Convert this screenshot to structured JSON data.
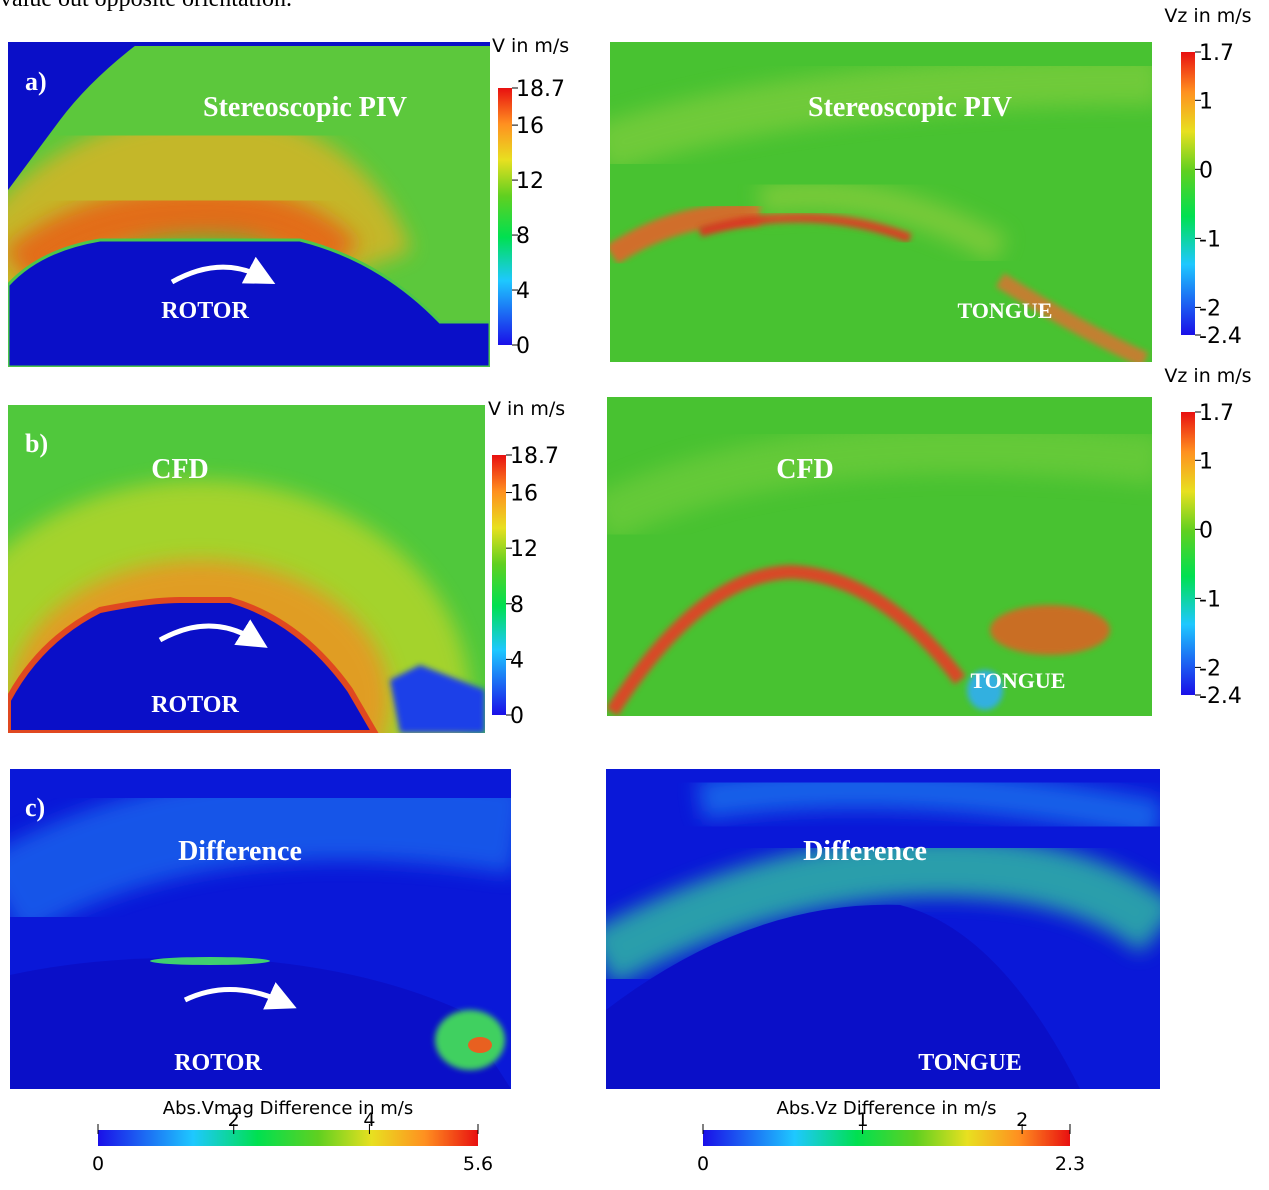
{
  "header_text": "value out opposite orientation.",
  "panels": [
    {
      "label": "a)",
      "title": "Stereoscopic PIV",
      "region": "ROTOR"
    },
    {
      "title": "Stereoscopic PIV",
      "region": "TONGUE"
    },
    {
      "label": "b)",
      "title": "CFD",
      "region": "ROTOR"
    },
    {
      "title": "CFD",
      "region": "TONGUE"
    },
    {
      "label": "c)",
      "title": "Difference",
      "region": "ROTOR"
    },
    {
      "title": "Difference",
      "region": "TONGUE"
    }
  ],
  "colorbars": [
    {
      "title": "V in m/s",
      "range": [
        0,
        18.7
      ],
      "ticks": [
        0,
        4,
        8,
        12,
        16,
        18.7
      ]
    },
    {
      "title": "Vz in m/s",
      "range": [
        -2.4,
        1.7
      ],
      "ticks": [
        -2.4,
        -2,
        -1,
        0,
        1,
        1.7
      ]
    },
    {
      "title": "V in m/s",
      "range": [
        0,
        18.7
      ],
      "ticks": [
        0,
        4,
        8,
        12,
        16,
        18.7
      ]
    },
    {
      "title": "Vz in m/s",
      "range": [
        -2.4,
        1.7
      ],
      "ticks": [
        -2.4,
        -2,
        -1,
        0,
        1,
        1.7
      ]
    },
    {
      "title": "Abs.Vmag Difference in m/s",
      "range": [
        0,
        5.6
      ],
      "ticks": [
        0,
        2,
        4,
        5.6
      ]
    },
    {
      "title": "Abs.Vz Difference in m/s",
      "range": [
        0,
        2.3
      ],
      "ticks": [
        0,
        1,
        2,
        2.3
      ]
    }
  ]
}
